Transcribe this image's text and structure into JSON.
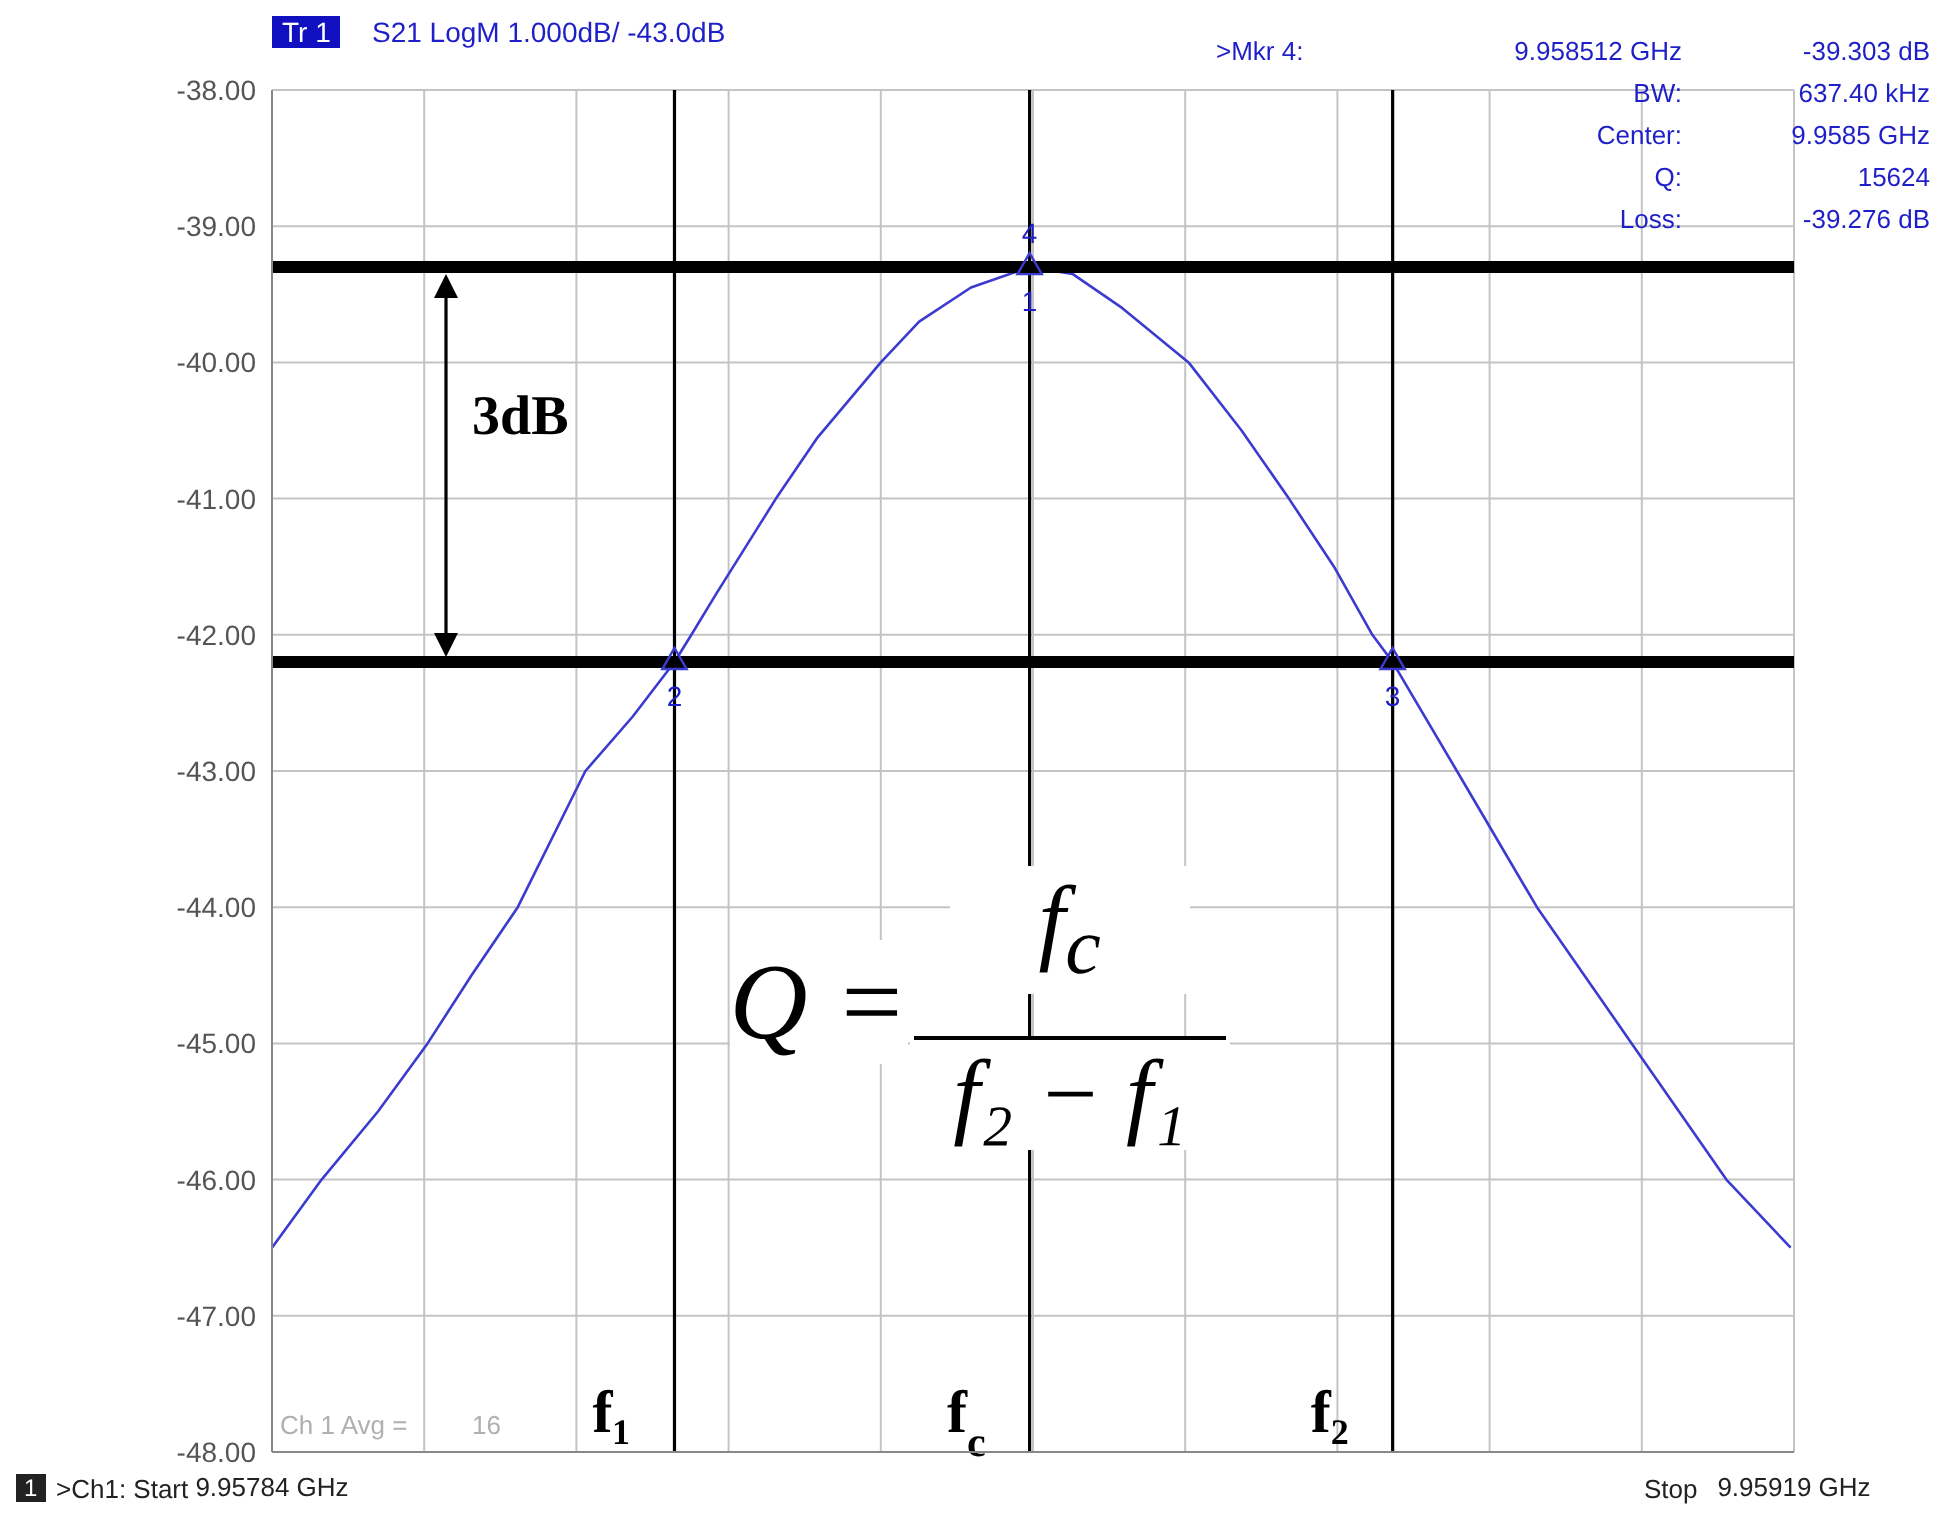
{
  "chart_data": {
    "type": "line",
    "title": "S21 LogM 1.000dB/  -43.0dB",
    "xlim": [
      9.95784,
      9.95919
    ],
    "xticks": [
      {
        "value": 9.95784,
        "label": "9.95784 GHz"
      },
      {
        "value": 9.957975,
        "label": null
      },
      {
        "value": 9.95811,
        "label": null
      },
      {
        "value": 9.958245,
        "label": null
      },
      {
        "value": 9.95838,
        "label": null
      },
      {
        "value": 9.958515,
        "label": null
      },
      {
        "value": 9.95865,
        "label": null
      },
      {
        "value": 9.958785,
        "label": null
      },
      {
        "value": 9.95892,
        "label": null
      },
      {
        "value": 9.959055,
        "label": null
      },
      {
        "value": 9.95919,
        "label": "9.95919 GHz"
      }
    ],
    "ylim": [
      -48,
      -38
    ],
    "yticks": [
      {
        "value": -38,
        "label": "-38.00"
      },
      {
        "value": -39,
        "label": "-39.00"
      },
      {
        "value": -40,
        "label": "-40.00"
      },
      {
        "value": -41,
        "label": "-41.00"
      },
      {
        "value": -42,
        "label": "-42.00"
      },
      {
        "value": -43,
        "label": "-43.00"
      },
      {
        "value": -44,
        "label": "-44.00"
      },
      {
        "value": -45,
        "label": "-45.00"
      },
      {
        "value": -46,
        "label": "-46.00"
      },
      {
        "value": -47,
        "label": "-47.00"
      },
      {
        "value": -48,
        "label": "-48.00"
      }
    ],
    "grid": true,
    "marker": "none",
    "line_style": "solid",
    "series": [
      {
        "color": "#3b3bd0",
        "x": [
          9.95784,
          9.957884,
          9.957934,
          9.957978,
          9.958017,
          9.958058,
          9.958118,
          9.95816,
          9.958197,
          9.958212,
          9.958234,
          9.958287,
          9.958324,
          9.95838,
          9.958414,
          9.95846,
          9.958512,
          9.95855,
          9.958594,
          9.958653,
          9.9587,
          9.958742,
          9.958782,
          9.958816,
          9.958834,
          9.958891,
          9.958962,
          9.959046,
          9.95913,
          9.959187
        ],
        "values": [
          -46.5,
          -46.0,
          -45.5,
          -45.0,
          -44.5,
          -44.0,
          -43.0,
          -42.6,
          -42.2,
          -42.0,
          -41.7,
          -41.0,
          -40.55,
          -40.0,
          -39.7,
          -39.45,
          -39.3,
          -39.35,
          -39.6,
          -40.0,
          -40.5,
          -41.0,
          -41.5,
          -42.0,
          -42.2,
          -43.0,
          -44.0,
          -45.0,
          -46.0,
          -46.5
        ]
      },
      {
        "type": "scatter",
        "marker": "triangle",
        "color": "#3b3bd0",
        "x": [
          9.958197,
          9.958512,
          9.958834
        ],
        "values": [
          -42.2,
          -39.3,
          -42.2
        ]
      }
    ],
    "ref_lines": [
      {
        "axis": "y",
        "value": -39.3,
        "color": "#000000"
      },
      {
        "axis": "y",
        "value": -42.2,
        "color": "#000000"
      },
      {
        "axis": "x",
        "value": 9.958197,
        "label": "f₁",
        "color": "#000000"
      },
      {
        "axis": "x",
        "value": 9.958512,
        "label": "f$_{c}$",
        "color": "#000000"
      },
      {
        "axis": "x",
        "value": 9.958834,
        "label": "f₂",
        "color": "#000000"
      }
    ],
    "annotations": [
      "Tr 1",
      ">Mkr 4:",
      "9.958512 GHz",
      "-39.303 dB",
      "BW:",
      "637.40 kHz",
      "Center:",
      "9.9585 GHz",
      "Q:",
      "15624",
      "Loss:",
      "-39.276 dB",
      "Ch 1 Avg =",
      "16",
      "1",
      ">Ch1: Start",
      "Stop",
      "3dB",
      "Q =",
      "f$_{c}$",
      "f₂ − f₁",
      {
        "text": "2",
        "x": 9.958197,
        "y": -42.45
      },
      {
        "text": "3",
        "x": 9.958834,
        "y": -42.45
      },
      {
        "text": "1",
        "x": 9.958512,
        "y": -39.55
      },
      {
        "text": "4",
        "x": 9.958512,
        "y": -39.05
      }
    ]
  }
}
